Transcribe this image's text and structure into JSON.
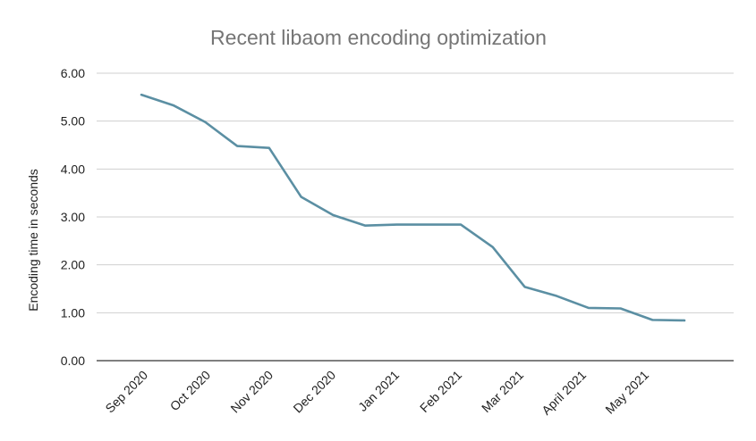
{
  "chart_data": {
    "type": "line",
    "title": "Recent libaom encoding optimization",
    "xlabel": "",
    "ylabel": "Encoding time in seconds",
    "ylim": [
      0,
      6
    ],
    "yticks": [
      "0.00",
      "1.00",
      "2.00",
      "3.00",
      "4.00",
      "5.00",
      "6.00"
    ],
    "x_tick_labels": [
      "Sep 2020",
      "Oct 2020",
      "Nov 2020",
      "Dec 2020",
      "Jan 2021",
      "Feb 2021",
      "Mar 2021",
      "April 2021",
      "May 2021"
    ],
    "grid": true,
    "legend": "none",
    "series": [
      {
        "color": "#5b8fa3",
        "values": [
          5.55,
          5.33,
          4.98,
          4.48,
          4.44,
          3.42,
          3.04,
          2.82,
          2.84,
          2.84,
          2.84,
          2.37,
          1.54,
          1.35,
          1.1,
          1.09,
          0.85,
          0.84
        ]
      }
    ]
  }
}
